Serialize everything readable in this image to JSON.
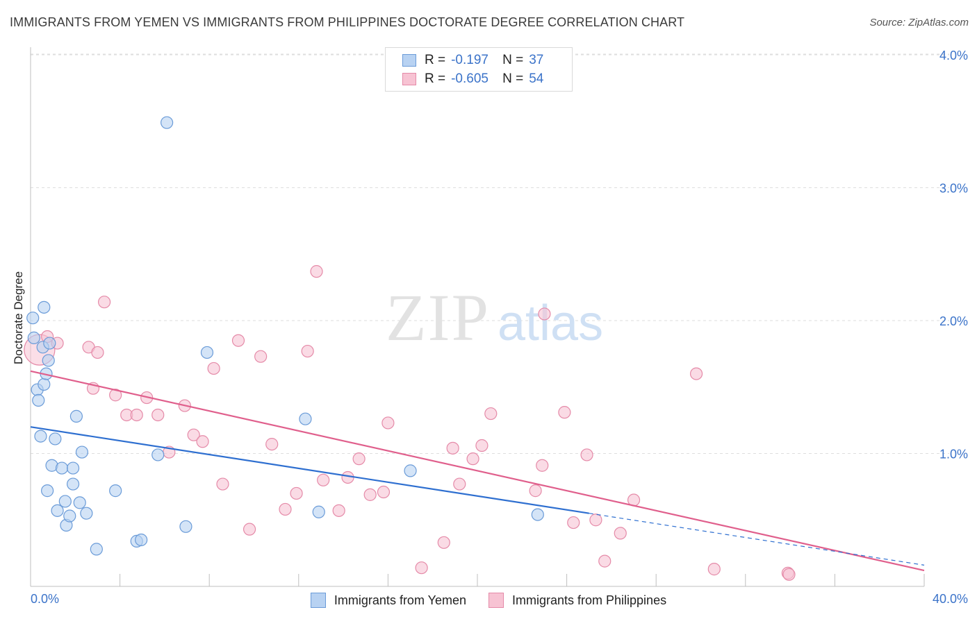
{
  "title": "IMMIGRANTS FROM YEMEN VS IMMIGRANTS FROM PHILIPPINES DOCTORATE DEGREE CORRELATION CHART",
  "source": "Source: ZipAtlas.com",
  "watermark": {
    "zip": "ZIP",
    "atlas": "atlas"
  },
  "legend": {
    "r_label": "R =",
    "n_label": "N =",
    "rows": [
      {
        "r": "-0.197",
        "n": "37"
      },
      {
        "r": "-0.605",
        "n": "54"
      }
    ]
  },
  "colors": {
    "yemen_fill": "#b8d2f2",
    "yemen_stroke": "#6a9bd8",
    "yemen_line": "#2e6fd0",
    "phil_fill": "#f7c3d3",
    "phil_stroke": "#e58aa8",
    "phil_line": "#e05f8c",
    "axis_text": "#3b73c9",
    "grid": "#dddddd"
  },
  "chart_data": {
    "type": "scatter",
    "title": "IMMIGRANTS FROM YEMEN VS IMMIGRANTS FROM PHILIPPINES DOCTORATE DEGREE CORRELATION CHART",
    "xlabel": "",
    "ylabel": "Doctorate Degree",
    "xlim": [
      0,
      40
    ],
    "ylim": [
      0,
      4.2
    ],
    "x_tick_labels": [
      "0.0%",
      "40.0%"
    ],
    "y_ticks": [
      {
        "value": 1.0,
        "label": "1.0%"
      },
      {
        "value": 2.0,
        "label": "2.0%"
      },
      {
        "value": 3.0,
        "label": "3.0%"
      },
      {
        "value": 4.0,
        "label": "4.0%"
      }
    ],
    "series": [
      {
        "name": "Immigrants from Yemen",
        "r": -0.197,
        "n": 37,
        "trend": {
          "x0": 0,
          "y0": 1.2,
          "x1": 25,
          "y1": 0.55,
          "dash_x1": 40,
          "dash_y1": 0.16
        },
        "points": [
          [
            0.1,
            2.02
          ],
          [
            0.15,
            1.87
          ],
          [
            0.3,
            1.48
          ],
          [
            0.35,
            1.4
          ],
          [
            0.45,
            1.13
          ],
          [
            0.55,
            1.8
          ],
          [
            0.6,
            2.1
          ],
          [
            0.6,
            1.52
          ],
          [
            0.7,
            1.6
          ],
          [
            0.8,
            1.7
          ],
          [
            0.85,
            1.83
          ],
          [
            0.75,
            0.72
          ],
          [
            0.95,
            0.91
          ],
          [
            1.1,
            1.11
          ],
          [
            1.2,
            0.57
          ],
          [
            1.4,
            0.89
          ],
          [
            1.55,
            0.64
          ],
          [
            1.6,
            0.46
          ],
          [
            1.75,
            0.53
          ],
          [
            1.9,
            0.77
          ],
          [
            1.9,
            0.89
          ],
          [
            2.05,
            1.28
          ],
          [
            2.2,
            0.63
          ],
          [
            2.3,
            1.01
          ],
          [
            2.5,
            0.55
          ],
          [
            2.95,
            0.28
          ],
          [
            3.8,
            0.72
          ],
          [
            4.75,
            0.34
          ],
          [
            4.95,
            0.35
          ],
          [
            5.7,
            0.99
          ],
          [
            6.1,
            3.49
          ],
          [
            6.95,
            0.45
          ],
          [
            7.9,
            1.76
          ],
          [
            12.3,
            1.26
          ],
          [
            12.9,
            0.56
          ],
          [
            17.0,
            0.87
          ],
          [
            22.7,
            0.54
          ]
        ]
      },
      {
        "name": "Immigrants from Philippines",
        "r": -0.605,
        "n": 54,
        "trend": {
          "x0": 0,
          "y0": 1.62,
          "x1": 40,
          "y1": 0.12
        },
        "points": [
          [
            0.4,
            1.78
          ],
          [
            0.75,
            1.88
          ],
          [
            1.2,
            1.83
          ],
          [
            2.6,
            1.8
          ],
          [
            2.8,
            1.49
          ],
          [
            3.0,
            1.76
          ],
          [
            3.3,
            2.14
          ],
          [
            3.8,
            1.44
          ],
          [
            4.3,
            1.29
          ],
          [
            4.75,
            1.29
          ],
          [
            5.2,
            1.42
          ],
          [
            5.7,
            1.29
          ],
          [
            6.2,
            1.01
          ],
          [
            6.9,
            1.36
          ],
          [
            7.3,
            1.14
          ],
          [
            7.7,
            1.09
          ],
          [
            8.2,
            1.64
          ],
          [
            8.6,
            0.77
          ],
          [
            9.3,
            1.85
          ],
          [
            9.8,
            0.43
          ],
          [
            10.3,
            1.73
          ],
          [
            10.8,
            1.07
          ],
          [
            11.4,
            0.58
          ],
          [
            11.9,
            0.7
          ],
          [
            12.4,
            1.77
          ],
          [
            12.8,
            2.37
          ],
          [
            13.1,
            0.8
          ],
          [
            13.8,
            0.57
          ],
          [
            14.2,
            0.82
          ],
          [
            14.7,
            0.96
          ],
          [
            15.2,
            0.69
          ],
          [
            15.8,
            0.71
          ],
          [
            16.0,
            1.23
          ],
          [
            17.5,
            0.14
          ],
          [
            18.5,
            0.33
          ],
          [
            18.9,
            1.04
          ],
          [
            19.2,
            0.77
          ],
          [
            19.8,
            0.96
          ],
          [
            20.2,
            1.06
          ],
          [
            20.6,
            1.3
          ],
          [
            22.6,
            0.72
          ],
          [
            22.9,
            0.91
          ],
          [
            23.0,
            2.05
          ],
          [
            23.9,
            1.31
          ],
          [
            24.3,
            0.48
          ],
          [
            24.9,
            0.99
          ],
          [
            25.3,
            0.5
          ],
          [
            25.7,
            0.19
          ],
          [
            26.4,
            0.4
          ],
          [
            27.0,
            0.65
          ],
          [
            29.8,
            1.6
          ],
          [
            30.6,
            0.13
          ],
          [
            33.9,
            0.1
          ],
          [
            33.95,
            0.09
          ]
        ]
      }
    ]
  }
}
